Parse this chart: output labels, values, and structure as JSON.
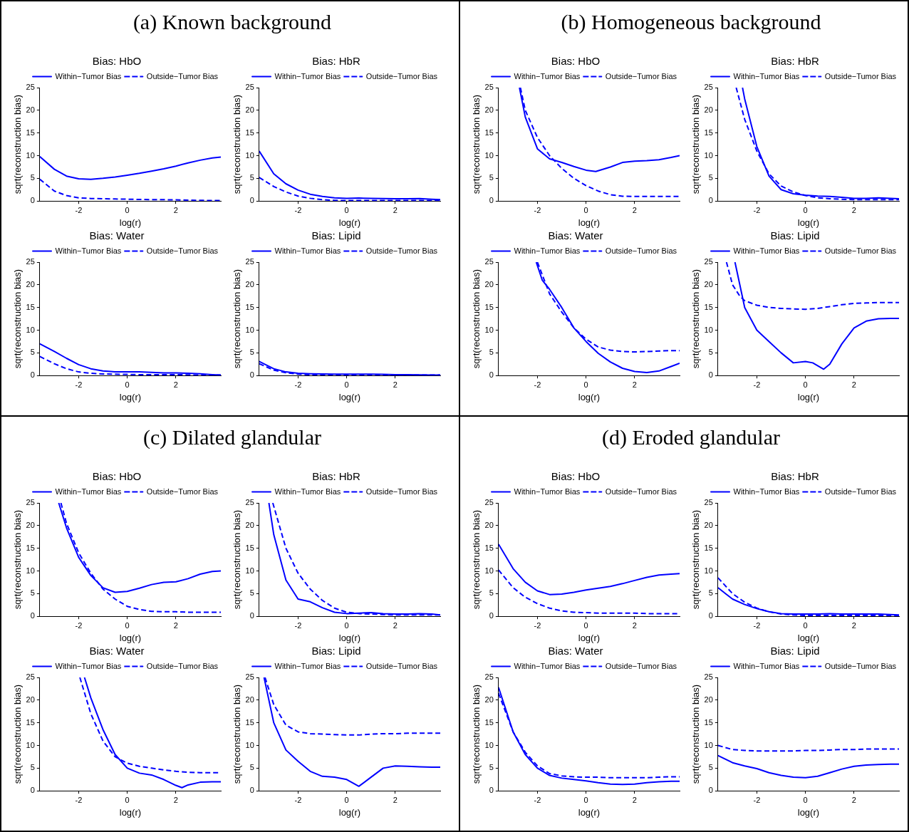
{
  "chart_data": [
    {
      "type": "line",
      "title": "Bias: HbO",
      "xlabel": "log(r)",
      "ylabel": "sqrt(reconstruction bias)",
      "annotations": [
        "(a) Known background"
      ],
      "xlim": [
        -3.6,
        3.85
      ],
      "xticks": [
        -2,
        0,
        2
      ],
      "ylim": [
        0,
        25
      ],
      "yticks": [
        0,
        5,
        10,
        15,
        20,
        25
      ],
      "grid": false,
      "legend": "top right",
      "marker": "none",
      "x": [
        -3.6,
        -3,
        -2.5,
        -2,
        -1.5,
        -1,
        -0.5,
        0,
        0.5,
        1,
        1.5,
        2,
        2.5,
        3,
        3.5,
        3.85
      ],
      "series": [
        {
          "name": "Within−Tumor Bias",
          "color": "#0000ff",
          "line_style": "solid",
          "values": [
            9.8,
            7,
            5.5,
            4.9,
            4.8,
            5,
            5.3,
            5.7,
            6.1,
            6.6,
            7.1,
            7.7,
            8.4,
            9.0,
            9.5,
            9.7
          ]
        },
        {
          "name": "Outside−Tumor Bias",
          "color": "#0000ff",
          "line_style": "dashed",
          "values": [
            4.8,
            2.2,
            1.2,
            0.7,
            0.55,
            0.5,
            0.45,
            0.4,
            0.35,
            0.3,
            0.3,
            0.25,
            0.2,
            0.15,
            0.1,
            0.1
          ]
        }
      ]
    },
    {
      "type": "line",
      "title": "Bias: HbR",
      "xlabel": "log(r)",
      "ylabel": "sqrt(reconstruction bias)",
      "xlim": [
        -3.6,
        3.85
      ],
      "xticks": [
        -2,
        0,
        2
      ],
      "ylim": [
        0,
        25
      ],
      "yticks": [
        0,
        5,
        10,
        15,
        20,
        25
      ],
      "grid": false,
      "legend": "top right",
      "marker": "none",
      "x": [
        -3.6,
        -3,
        -2.5,
        -2,
        -1.5,
        -1,
        -0.5,
        0,
        0.5,
        1,
        1.5,
        2,
        2.5,
        3,
        3.5,
        3.85
      ],
      "series": [
        {
          "name": "Within−Tumor Bias",
          "color": "#0000ff",
          "line_style": "solid",
          "values": [
            11,
            6,
            3.8,
            2.4,
            1.5,
            1.0,
            0.7,
            0.6,
            0.65,
            0.6,
            0.55,
            0.5,
            0.5,
            0.55,
            0.4,
            0.3
          ]
        },
        {
          "name": "Outside−Tumor Bias",
          "color": "#0000ff",
          "line_style": "dashed",
          "values": [
            5.2,
            3.2,
            2,
            1.1,
            0.6,
            0.3,
            0.15,
            0.1,
            0.1,
            0.1,
            0.1,
            0.1,
            0.1,
            0.1,
            0.1,
            0.1
          ]
        }
      ]
    },
    {
      "type": "line",
      "title": "Bias: Water",
      "xlabel": "log(r)",
      "ylabel": "sqrt(reconstruction bias)",
      "xlim": [
        -3.6,
        3.85
      ],
      "xticks": [
        -2,
        0,
        2
      ],
      "ylim": [
        0,
        25
      ],
      "yticks": [
        0,
        5,
        10,
        15,
        20,
        25
      ],
      "grid": false,
      "legend": "top right",
      "marker": "none",
      "x": [
        -3.6,
        -3,
        -2.5,
        -2,
        -1.5,
        -1,
        -0.5,
        0,
        0.5,
        1,
        1.5,
        2,
        2.5,
        3,
        3.5,
        3.85
      ],
      "series": [
        {
          "name": "Within−Tumor Bias",
          "color": "#0000ff",
          "line_style": "solid",
          "values": [
            7,
            5.3,
            3.8,
            2.4,
            1.5,
            1.0,
            0.8,
            0.8,
            0.8,
            0.7,
            0.6,
            0.6,
            0.5,
            0.4,
            0.2,
            0.1
          ]
        },
        {
          "name": "Outside−Tumor Bias",
          "color": "#0000ff",
          "line_style": "dashed",
          "values": [
            4.2,
            2.6,
            1.5,
            0.8,
            0.5,
            0.35,
            0.3,
            0.25,
            0.2,
            0.2,
            0.2,
            0.2,
            0.15,
            0.1,
            0.1,
            0.1
          ]
        }
      ]
    },
    {
      "type": "line",
      "title": "Bias: Lipid",
      "xlabel": "log(r)",
      "ylabel": "sqrt(reconstruction bias)",
      "xlim": [
        -3.6,
        3.85
      ],
      "xticks": [
        -2,
        0,
        2
      ],
      "ylim": [
        0,
        25
      ],
      "yticks": [
        0,
        5,
        10,
        15,
        20,
        25
      ],
      "grid": false,
      "legend": "top right",
      "marker": "none",
      "x": [
        -3.6,
        -3,
        -2.5,
        -2,
        -1.5,
        -1,
        -0.5,
        0,
        0.5,
        1,
        1.5,
        2,
        2.5,
        3,
        3.5,
        3.85
      ],
      "series": [
        {
          "name": "Within−Tumor Bias",
          "color": "#0000ff",
          "line_style": "solid",
          "values": [
            3.1,
            1.5,
            0.8,
            0.5,
            0.4,
            0.35,
            0.3,
            0.3,
            0.3,
            0.3,
            0.25,
            0.2,
            0.2,
            0.15,
            0.1,
            0.1
          ]
        },
        {
          "name": "Outside−Tumor Bias",
          "color": "#0000ff",
          "line_style": "dashed",
          "values": [
            2.6,
            1.2,
            0.6,
            0.3,
            0.2,
            0.2,
            0.15,
            0.15,
            0.1,
            0.1,
            0.1,
            0.1,
            0.1,
            0.1,
            0.1,
            0.1
          ]
        }
      ]
    },
    {
      "type": "line",
      "title": "Bias: HbO",
      "xlabel": "log(r)",
      "ylabel": "sqrt(reconstruction bias)",
      "annotations": [
        "(b) Homogeneous background"
      ],
      "xlim": [
        -3.6,
        3.85
      ],
      "xticks": [
        -2,
        0,
        2
      ],
      "ylim": [
        0,
        25
      ],
      "yticks": [
        0,
        5,
        10,
        15,
        20,
        25
      ],
      "grid": false,
      "legend": "top right",
      "marker": "none",
      "series": [
        {
          "name": "Within−Tumor Bias",
          "color": "#0000ff",
          "line_style": "solid",
          "x": [
            -2.74,
            -2.5,
            -2,
            -1.5,
            -1,
            -0.5,
            0,
            0.4,
            1,
            1.5,
            2,
            2.5,
            3,
            3.5,
            3.85
          ],
          "values": [
            25,
            18.5,
            11.5,
            9.3,
            8.5,
            7.6,
            6.8,
            6.5,
            7.5,
            8.5,
            8.8,
            8.9,
            9.1,
            9.6,
            10
          ]
        },
        {
          "name": "Outside−Tumor Bias",
          "color": "#0000ff",
          "line_style": "dashed",
          "x": [
            -2.7,
            -2.5,
            -2,
            -1.5,
            -1,
            -0.5,
            0,
            0.5,
            1,
            1.5,
            2,
            2.5,
            3,
            3.5,
            3.85
          ],
          "values": [
            25,
            20,
            14,
            10,
            7.2,
            5,
            3.4,
            2.2,
            1.4,
            1.05,
            1,
            1,
            1,
            1,
            1
          ]
        }
      ]
    },
    {
      "type": "line",
      "title": "Bias: HbR",
      "xlabel": "log(r)",
      "ylabel": "sqrt(reconstruction bias)",
      "xlim": [
        -3.6,
        3.85
      ],
      "xticks": [
        -2,
        0,
        2
      ],
      "ylim": [
        0,
        25
      ],
      "yticks": [
        0,
        5,
        10,
        15,
        20,
        25
      ],
      "grid": false,
      "legend": "top right",
      "marker": "none",
      "series": [
        {
          "name": "Within−Tumor Bias",
          "color": "#0000ff",
          "line_style": "solid",
          "x": [
            -2.59,
            -2.5,
            -2,
            -1.5,
            -1,
            -0.5,
            0,
            0.5,
            1,
            1.5,
            2,
            2.5,
            3,
            3.5,
            3.85
          ],
          "values": [
            25,
            22.5,
            12,
            5.5,
            2.5,
            1.6,
            1.3,
            1.1,
            1.0,
            0.8,
            0.6,
            0.6,
            0.7,
            0.6,
            0.5
          ]
        },
        {
          "name": "Outside−Tumor Bias",
          "color": "#0000ff",
          "line_style": "dashed",
          "x": [
            -2.85,
            -2.5,
            -2,
            -1.5,
            -1,
            -0.5,
            0,
            0.5,
            1,
            1.5,
            2,
            2.5,
            3,
            3.5,
            3.85
          ],
          "values": [
            25,
            18,
            11,
            6,
            3.3,
            2,
            1.2,
            0.7,
            0.5,
            0.4,
            0.3,
            0.3,
            0.3,
            0.3,
            0.3
          ]
        }
      ]
    },
    {
      "type": "line",
      "title": "Bias: Water",
      "xlabel": "log(r)",
      "ylabel": "sqrt(reconstruction bias)",
      "xlim": [
        -3.6,
        3.85
      ],
      "xticks": [
        -2,
        0,
        2
      ],
      "ylim": [
        0,
        25
      ],
      "yticks": [
        0,
        5,
        10,
        15,
        20,
        25
      ],
      "grid": false,
      "legend": "top right",
      "marker": "none",
      "series": [
        {
          "name": "Within−Tumor Bias",
          "color": "#0000ff",
          "line_style": "solid",
          "x": [
            -2.05,
            -1.8,
            -1.5,
            -1,
            -0.5,
            0,
            0.5,
            1,
            1.5,
            2,
            2.5,
            3,
            3.5,
            3.85
          ],
          "values": [
            25,
            21,
            19,
            15,
            10.5,
            7.5,
            4.9,
            3,
            1.6,
            0.9,
            0.65,
            1.0,
            2.0,
            2.7
          ]
        },
        {
          "name": "Outside−Tumor Bias",
          "color": "#0000ff",
          "line_style": "dashed",
          "x": [
            -2.0,
            -1.5,
            -1,
            -0.5,
            0,
            0.5,
            1,
            1.5,
            2,
            2.5,
            3,
            3.5,
            3.85
          ],
          "values": [
            25,
            18,
            14,
            10.5,
            8,
            6.3,
            5.6,
            5.3,
            5.2,
            5.3,
            5.4,
            5.5,
            5.5
          ]
        }
      ]
    },
    {
      "type": "line",
      "title": "Bias: Lipid",
      "xlabel": "log(r)",
      "ylabel": "sqrt(reconstruction bias)",
      "xlim": [
        -3.6,
        3.85
      ],
      "xticks": [
        -2,
        0,
        2
      ],
      "ylim": [
        0,
        25
      ],
      "yticks": [
        0,
        5,
        10,
        15,
        20,
        25
      ],
      "grid": false,
      "legend": "top right",
      "marker": "none",
      "series": [
        {
          "name": "Within−Tumor Bias",
          "color": "#0000ff",
          "line_style": "solid",
          "x": [
            -2.9,
            -2.5,
            -2,
            -1.5,
            -1,
            -0.5,
            0,
            0.3,
            0.75,
            1,
            1.5,
            2,
            2.5,
            3,
            3.5,
            3.85
          ],
          "values": [
            25,
            15,
            10,
            7.5,
            5,
            2.8,
            3.1,
            2.8,
            1.4,
            2.5,
            7,
            10.5,
            12,
            12.5,
            12.6,
            12.6
          ]
        },
        {
          "name": "Outside−Tumor Bias",
          "color": "#0000ff",
          "line_style": "dashed",
          "x": [
            -3.25,
            -3,
            -2.7,
            -2.5,
            -2,
            -1.5,
            -1,
            -0.5,
            0,
            0.5,
            1,
            1.5,
            2,
            2.5,
            3,
            3.85
          ],
          "values": [
            25,
            20,
            17.5,
            16.5,
            15.5,
            15,
            14.8,
            14.7,
            14.6,
            14.8,
            15.2,
            15.6,
            15.9,
            16,
            16.1,
            16.1
          ]
        }
      ]
    },
    {
      "type": "line",
      "title": "Bias: HbO",
      "xlabel": "log(r)",
      "ylabel": "sqrt(reconstruction bias)",
      "annotations": [
        "(c) Dilated glandular"
      ],
      "xlim": [
        -3.6,
        3.85
      ],
      "xticks": [
        -2,
        0,
        2
      ],
      "ylim": [
        0,
        25
      ],
      "yticks": [
        0,
        5,
        10,
        15,
        20,
        25
      ],
      "grid": false,
      "legend": "top right",
      "marker": "none",
      "series": [
        {
          "name": "Within−Tumor Bias",
          "color": "#0000ff",
          "line_style": "solid",
          "x": [
            -2.82,
            -2.5,
            -2,
            -1.5,
            -1,
            -0.5,
            0,
            0.5,
            1,
            1.5,
            2,
            2.5,
            3,
            3.5,
            3.85
          ],
          "values": [
            25,
            19.5,
            13,
            9,
            6.3,
            5.3,
            5.5,
            6.2,
            7,
            7.5,
            7.6,
            8.3,
            9.3,
            9.9,
            10
          ]
        },
        {
          "name": "Outside−Tumor Bias",
          "color": "#0000ff",
          "line_style": "dashed",
          "x": [
            -2.73,
            -2.5,
            -2,
            -1.5,
            -1,
            -0.5,
            0,
            0.5,
            1,
            1.5,
            2,
            2.5,
            3,
            3.5,
            3.85
          ],
          "values": [
            25,
            20.5,
            14,
            9.5,
            6,
            3.8,
            2.2,
            1.5,
            1.1,
            1.0,
            1.0,
            0.9,
            0.9,
            0.9,
            0.9
          ]
        }
      ]
    },
    {
      "type": "line",
      "title": "Bias: HbR",
      "xlabel": "log(r)",
      "ylabel": "sqrt(reconstruction bias)",
      "xlim": [
        -3.6,
        3.85
      ],
      "xticks": [
        -2,
        0,
        2
      ],
      "ylim": [
        0,
        25
      ],
      "yticks": [
        0,
        5,
        10,
        15,
        20,
        25
      ],
      "grid": false,
      "legend": "top right",
      "marker": "none",
      "series": [
        {
          "name": "Within−Tumor Bias",
          "color": "#0000ff",
          "line_style": "solid",
          "x": [
            -3.2,
            -3,
            -2.5,
            -2,
            -1.5,
            -1,
            -0.5,
            0,
            0.5,
            1,
            1.5,
            2,
            2.5,
            3,
            3.5,
            3.85
          ],
          "values": [
            25,
            18,
            8,
            3.8,
            3.2,
            1.9,
            0.9,
            0.6,
            0.7,
            0.8,
            0.6,
            0.5,
            0.5,
            0.6,
            0.5,
            0.3
          ]
        },
        {
          "name": "Outside−Tumor Bias",
          "color": "#0000ff",
          "line_style": "dashed",
          "x": [
            -3.04,
            -2.5,
            -2,
            -1.5,
            -1,
            -0.5,
            0,
            0.5,
            1,
            1.5,
            2,
            2.5,
            3,
            3.5,
            3.85
          ],
          "values": [
            25,
            15,
            9.5,
            6,
            3.5,
            1.8,
            0.9,
            0.6,
            0.5,
            0.4,
            0.3,
            0.3,
            0.3,
            0.3,
            0.3
          ]
        }
      ]
    },
    {
      "type": "line",
      "title": "Bias: Water",
      "xlabel": "log(r)",
      "ylabel": "sqrt(reconstruction bias)",
      "xlim": [
        -3.6,
        3.85
      ],
      "xticks": [
        -2,
        0,
        2
      ],
      "ylim": [
        0,
        25
      ],
      "yticks": [
        0,
        5,
        10,
        15,
        20,
        25
      ],
      "grid": false,
      "legend": "top right",
      "marker": "none",
      "series": [
        {
          "name": "Within−Tumor Bias",
          "color": "#0000ff",
          "line_style": "solid",
          "x": [
            -1.76,
            -1.5,
            -1,
            -0.5,
            0,
            0.5,
            1,
            1.5,
            2,
            2.25,
            2.5,
            3,
            3.5,
            3.85
          ],
          "values": [
            25,
            20.5,
            13.5,
            8,
            5,
            3.9,
            3.5,
            2.5,
            1.2,
            0.7,
            1.3,
            1.9,
            2,
            2
          ]
        },
        {
          "name": "Outside−Tumor Bias",
          "color": "#0000ff",
          "line_style": "dashed",
          "x": [
            -1.95,
            -1.5,
            -1,
            -0.5,
            0,
            0.5,
            1,
            1.5,
            2,
            2.5,
            3,
            3.85
          ],
          "values": [
            25,
            17,
            11,
            7.5,
            6.1,
            5.4,
            5,
            4.6,
            4.3,
            4.1,
            4,
            4
          ]
        }
      ]
    },
    {
      "type": "line",
      "title": "Bias: Lipid",
      "xlabel": "log(r)",
      "ylabel": "sqrt(reconstruction bias)",
      "xlim": [
        -3.6,
        3.85
      ],
      "xticks": [
        -2,
        0,
        2
      ],
      "ylim": [
        0,
        25
      ],
      "yticks": [
        0,
        5,
        10,
        15,
        20,
        25
      ],
      "grid": false,
      "legend": "top right",
      "marker": "none",
      "series": [
        {
          "name": "Within−Tumor Bias",
          "color": "#0000ff",
          "line_style": "solid",
          "x": [
            -3.4,
            -3,
            -2.5,
            -2,
            -1.5,
            -1,
            -0.5,
            0,
            0.5,
            1,
            1.5,
            2,
            2.5,
            3,
            3.5,
            3.85
          ],
          "values": [
            25,
            15,
            9,
            6.5,
            4.3,
            3.2,
            3,
            2.5,
            1,
            3,
            5,
            5.5,
            5.4,
            5.3,
            5.2,
            5.2
          ]
        },
        {
          "name": "Outside−Tumor Bias",
          "color": "#0000ff",
          "line_style": "dashed",
          "x": [
            -3.36,
            -3,
            -2.5,
            -2,
            -1.5,
            -1,
            -0.5,
            0,
            0.5,
            1,
            1.5,
            2,
            2.5,
            3,
            3.85
          ],
          "values": [
            25,
            19,
            14.5,
            13,
            12.6,
            12.5,
            12.4,
            12.3,
            12.3,
            12.5,
            12.6,
            12.6,
            12.7,
            12.7,
            12.7
          ]
        }
      ]
    },
    {
      "type": "line",
      "title": "Bias: HbO",
      "xlabel": "log(r)",
      "ylabel": "sqrt(reconstruction bias)",
      "annotations": [
        "(d) Eroded glandular"
      ],
      "xlim": [
        -3.6,
        3.85
      ],
      "xticks": [
        -2,
        0,
        2
      ],
      "ylim": [
        0,
        25
      ],
      "yticks": [
        0,
        5,
        10,
        15,
        20,
        25
      ],
      "grid": false,
      "legend": "top right",
      "marker": "none",
      "x": [
        -3.6,
        -3,
        -2.5,
        -2,
        -1.5,
        -1,
        -0.5,
        0,
        0.5,
        1,
        1.5,
        2,
        2.5,
        3,
        3.5,
        3.85
      ],
      "series": [
        {
          "name": "Within−Tumor Bias",
          "color": "#0000ff",
          "line_style": "solid",
          "values": [
            15.9,
            10.5,
            7.5,
            5.6,
            4.8,
            4.9,
            5.3,
            5.8,
            6.2,
            6.6,
            7.2,
            7.9,
            8.6,
            9.1,
            9.3,
            9.4
          ]
        },
        {
          "name": "Outside−Tumor Bias",
          "color": "#0000ff",
          "line_style": "dashed",
          "values": [
            10.2,
            6.3,
            4.2,
            2.8,
            1.8,
            1.2,
            0.9,
            0.8,
            0.7,
            0.7,
            0.7,
            0.7,
            0.6,
            0.6,
            0.6,
            0.6
          ]
        }
      ]
    },
    {
      "type": "line",
      "title": "Bias: HbR",
      "xlabel": "log(r)",
      "ylabel": "sqrt(reconstruction bias)",
      "xlim": [
        -3.6,
        3.85
      ],
      "xticks": [
        -2,
        0,
        2
      ],
      "ylim": [
        0,
        25
      ],
      "yticks": [
        0,
        5,
        10,
        15,
        20,
        25
      ],
      "grid": false,
      "legend": "top right",
      "marker": "none",
      "x": [
        -3.6,
        -3,
        -2.5,
        -2,
        -1.5,
        -1,
        -0.5,
        0,
        0.5,
        1,
        1.5,
        2,
        2.5,
        3,
        3.5,
        3.85
      ],
      "series": [
        {
          "name": "Within−Tumor Bias",
          "color": "#0000ff",
          "line_style": "solid",
          "values": [
            6.3,
            3.8,
            2.6,
            1.7,
            1.0,
            0.6,
            0.5,
            0.5,
            0.5,
            0.6,
            0.5,
            0.5,
            0.5,
            0.5,
            0.4,
            0.3
          ]
        },
        {
          "name": "Outside−Tumor Bias",
          "color": "#0000ff",
          "line_style": "dashed",
          "values": [
            8.5,
            5,
            3.1,
            1.8,
            1.0,
            0.5,
            0.3,
            0.2,
            0.2,
            0.2,
            0.2,
            0.2,
            0.2,
            0.2,
            0.2,
            0.2
          ]
        }
      ]
    },
    {
      "type": "line",
      "title": "Bias: Water",
      "xlabel": "log(r)",
      "ylabel": "sqrt(reconstruction bias)",
      "xlim": [
        -3.6,
        3.85
      ],
      "xticks": [
        -2,
        0,
        2
      ],
      "ylim": [
        0,
        25
      ],
      "yticks": [
        0,
        5,
        10,
        15,
        20,
        25
      ],
      "grid": false,
      "legend": "top right",
      "marker": "none",
      "x": [
        -3.6,
        -3,
        -2.5,
        -2,
        -1.5,
        -1,
        -0.5,
        0,
        0.5,
        1,
        1.5,
        2,
        2.5,
        3,
        3.5,
        3.85
      ],
      "series": [
        {
          "name": "Within−Tumor Bias",
          "color": "#0000ff",
          "line_style": "solid",
          "values": [
            22.8,
            13,
            8,
            5,
            3.4,
            2.8,
            2.5,
            2.2,
            1.8,
            1.5,
            1.4,
            1.5,
            1.8,
            2.0,
            2.1,
            2.1
          ]
        },
        {
          "name": "Outside−Tumor Bias",
          "color": "#0000ff",
          "line_style": "dashed",
          "values": [
            21.5,
            13,
            8.5,
            5.5,
            3.8,
            3.3,
            3.1,
            3.0,
            3.0,
            2.9,
            2.9,
            2.9,
            2.9,
            3.0,
            3.1,
            3.1
          ]
        }
      ]
    },
    {
      "type": "line",
      "title": "Bias: Lipid",
      "xlabel": "log(r)",
      "ylabel": "sqrt(reconstruction bias)",
      "xlim": [
        -3.6,
        3.85
      ],
      "xticks": [
        -2,
        0,
        2
      ],
      "ylim": [
        0,
        25
      ],
      "yticks": [
        0,
        5,
        10,
        15,
        20,
        25
      ],
      "grid": false,
      "legend": "top right",
      "marker": "none",
      "x": [
        -3.6,
        -3,
        -2.5,
        -2,
        -1.5,
        -1,
        -0.5,
        0,
        0.5,
        1,
        1.5,
        2,
        2.5,
        3,
        3.5,
        3.85
      ],
      "series": [
        {
          "name": "Within−Tumor Bias",
          "color": "#0000ff",
          "line_style": "solid",
          "values": [
            7.8,
            6.2,
            5.5,
            4.9,
            4.0,
            3.4,
            3.0,
            2.9,
            3.2,
            4.0,
            4.8,
            5.4,
            5.7,
            5.8,
            5.9,
            5.9
          ]
        },
        {
          "name": "Outside−Tumor Bias",
          "color": "#0000ff",
          "line_style": "dashed",
          "values": [
            10,
            9.1,
            8.9,
            8.8,
            8.8,
            8.8,
            8.8,
            8.9,
            8.9,
            9.0,
            9.1,
            9.1,
            9.2,
            9.2,
            9.2,
            9.2
          ]
        }
      ]
    }
  ]
}
